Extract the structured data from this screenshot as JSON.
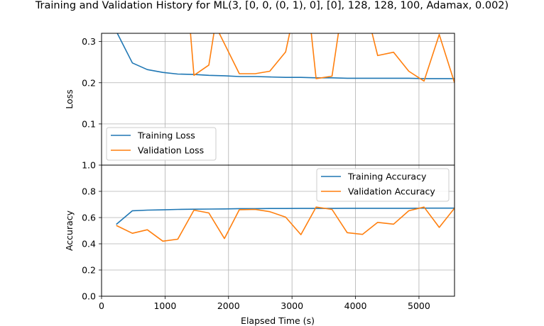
{
  "chart_data": {
    "type": "line",
    "title": "Training and Validation History for ML(3, [0, 0, (0, 1), 0], [0], 128, 128, 100, Adamax, 0.002)",
    "xlabel": "Elapsed Time (s)",
    "xlim": [
      0,
      5560
    ],
    "x_ticks": [
      "0",
      "1000",
      "2000",
      "3000",
      "4000",
      "5000"
    ],
    "x_tick_values": [
      0,
      1000,
      2000,
      3000,
      4000,
      5000
    ],
    "grid": true,
    "panels": [
      {
        "name": "loss",
        "ylabel": "Loss",
        "ylim": [
          0,
          0.32
        ],
        "y_ticks": [
          "0.1",
          "0.2",
          "0.3"
        ],
        "y_tick_values": [
          0.1,
          0.2,
          0.3
        ],
        "legend": "lower-left",
        "series": [
          {
            "name": "Training Loss",
            "color": "#1f77b4",
            "x": [
              232,
              485,
              720,
              965,
              1200,
              1455,
              1690,
              1935,
              2170,
              2420,
              2650,
              2900,
              3140,
              3380,
              3630,
              3870,
              4110,
              4350,
              4600,
              4840,
              5080,
              5320,
              5560
            ],
            "y": [
              0.325,
              0.248,
              0.232,
              0.225,
              0.221,
              0.22,
              0.218,
              0.217,
              0.215,
              0.215,
              0.214,
              0.213,
              0.213,
              0.212,
              0.212,
              0.211,
              0.211,
              0.211,
              0.211,
              0.211,
              0.21,
              0.21,
              0.21
            ]
          },
          {
            "name": "Validation Loss",
            "color": "#ff7f0e",
            "x": [
              1390,
              1455,
              1690,
              1790,
              2170,
              2420,
              2650,
              2900,
              2990,
              3290,
              3380,
              3630,
              3750,
              4230,
              4350,
              4600,
              4840,
              5080,
              5320,
              5560
            ],
            "y": [
              0.34,
              0.218,
              0.243,
              0.34,
              0.222,
              0.222,
              0.228,
              0.275,
              0.34,
              0.34,
              0.21,
              0.216,
              0.34,
              0.34,
              0.266,
              0.274,
              0.228,
              0.204,
              0.317,
              0.2
            ]
          }
        ]
      },
      {
        "name": "accuracy",
        "ylabel": "Accuracy",
        "ylim": [
          0,
          1.0
        ],
        "y_ticks": [
          "0.0",
          "0.2",
          "0.4",
          "0.6",
          "0.8",
          "1.0"
        ],
        "y_tick_values": [
          0,
          0.2,
          0.4,
          0.6,
          0.8,
          1.0
        ],
        "legend": "upper-right",
        "series": [
          {
            "name": "Training Accuracy",
            "color": "#1f77b4",
            "x": [
              232,
              485,
              720,
              965,
              1200,
              1455,
              1690,
              1935,
              2170,
              2420,
              2650,
              2900,
              3140,
              3380,
              3630,
              3870,
              4110,
              4350,
              4600,
              4840,
              5080,
              5320,
              5560
            ],
            "y": [
              0.548,
              0.652,
              0.657,
              0.659,
              0.662,
              0.664,
              0.665,
              0.666,
              0.668,
              0.668,
              0.669,
              0.669,
              0.67,
              0.67,
              0.67,
              0.671,
              0.671,
              0.671,
              0.671,
              0.671,
              0.672,
              0.672,
              0.672
            ]
          },
          {
            "name": "Validation Accuracy",
            "color": "#ff7f0e",
            "x": [
              232,
              485,
              720,
              965,
              1200,
              1455,
              1690,
              1935,
              2170,
              2420,
              2650,
              2900,
              3140,
              3380,
              3630,
              3870,
              4110,
              4350,
              4600,
              4840,
              5080,
              5320,
              5560
            ],
            "y": [
              0.54,
              0.48,
              0.507,
              0.42,
              0.435,
              0.657,
              0.635,
              0.44,
              0.66,
              0.662,
              0.645,
              0.603,
              0.47,
              0.68,
              0.662,
              0.485,
              0.472,
              0.563,
              0.55,
              0.652,
              0.68,
              0.525,
              0.672
            ]
          }
        ]
      }
    ]
  }
}
